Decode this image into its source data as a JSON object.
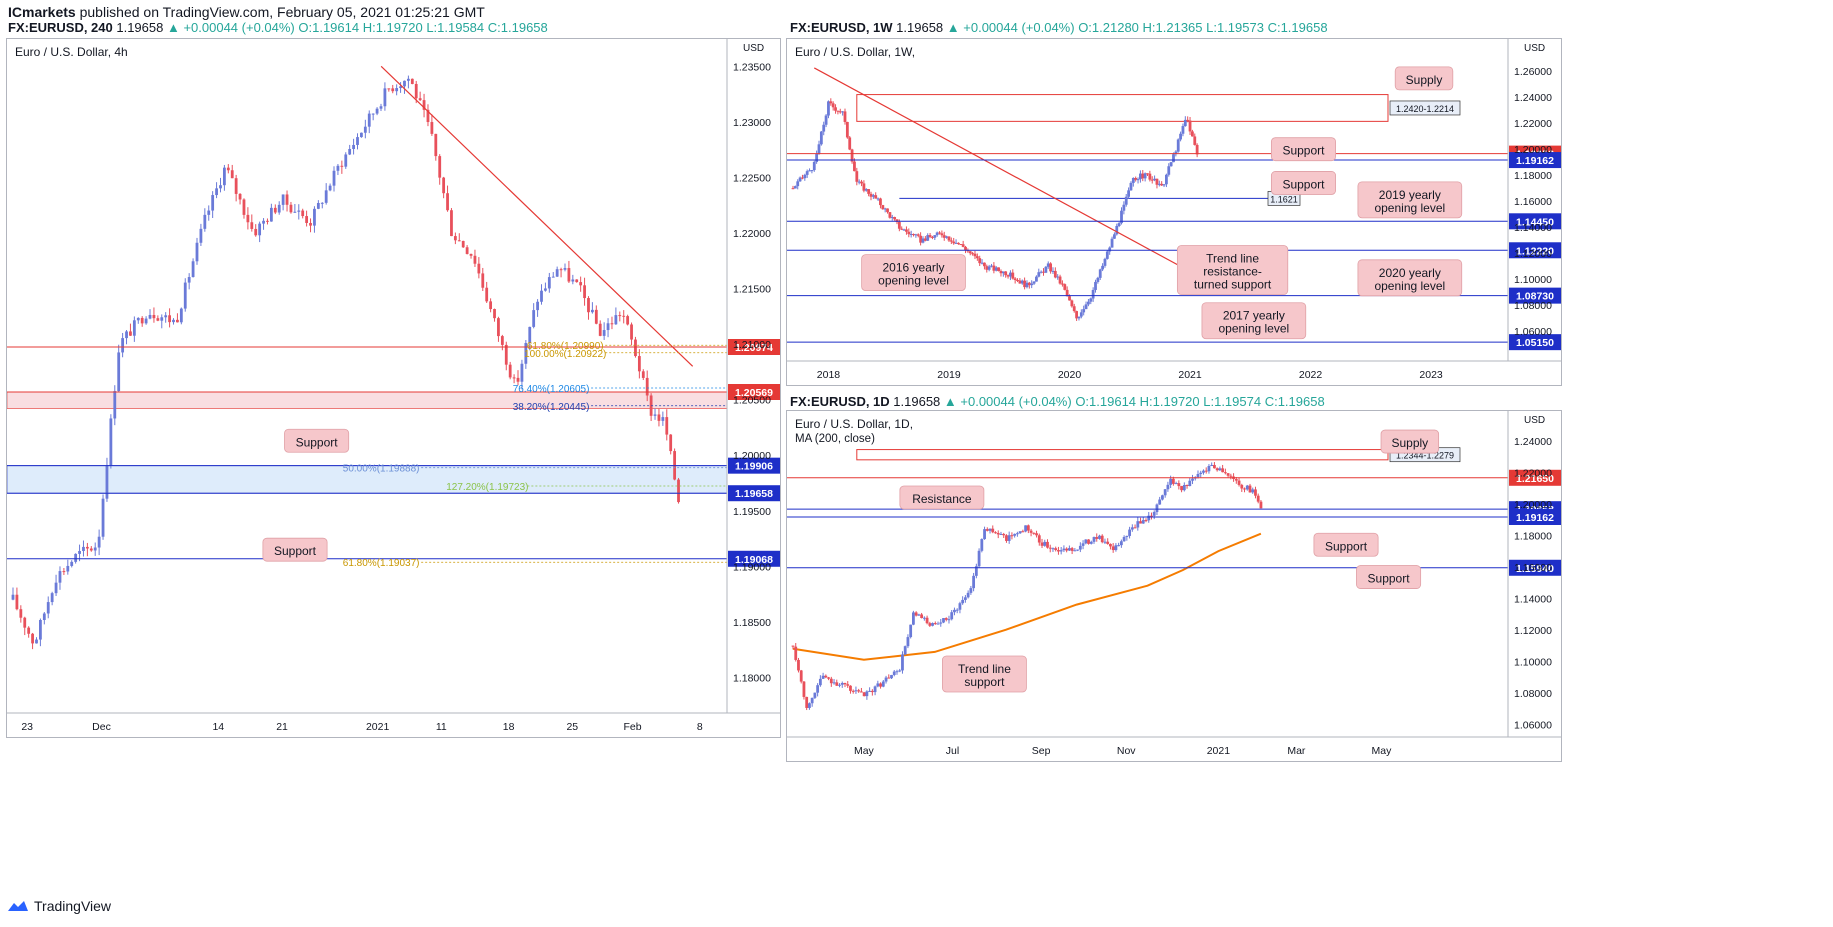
{
  "header": {
    "publisher": "ICmarkets",
    "published_text": "published on TradingView.com, February 05, 2021 01:25:21 GMT"
  },
  "footer": {
    "brand": "TradingView",
    "logo_icon": "tradingview-logo-icon"
  },
  "colors": {
    "up": "#6a7ad8",
    "down": "#e8505b",
    "support_line": "#1e2fc8",
    "resistance": "#e53935",
    "zone_blue": "#d6e8fb",
    "zone_red": "#f8d7da",
    "callout_bg": "#f6c7cb",
    "ma": "#f57c00"
  },
  "chart_data": [
    {
      "id": "h4",
      "type": "candlestick",
      "symbol_line": {
        "ticker": "FX:EURUSD, 240",
        "close": "1.19658",
        "change": "+0.00044 (+0.04%)",
        "o": "1.19614",
        "h": "1.19720",
        "l": "1.19584",
        "c": "1.19658"
      },
      "title": "Euro / U.S. Dollar, 4h",
      "currency": "USD",
      "ylim": [
        1.1768,
        1.2362
      ],
      "y_ticks": [
        "1.23500",
        "1.23000",
        "1.22500",
        "1.22000",
        "1.21500",
        "1.21000",
        "1.20500",
        "1.20000",
        "1.19500",
        "1.19000",
        "1.18500",
        "1.18000"
      ],
      "x_ticks": [
        {
          "label": "23",
          "t": 0.02
        },
        {
          "label": "Dec",
          "t": 0.125
        },
        {
          "label": "14",
          "t": 0.29
        },
        {
          "label": "21",
          "t": 0.38
        },
        {
          "label": "2021",
          "t": 0.515
        },
        {
          "label": "11",
          "t": 0.605
        },
        {
          "label": "18",
          "t": 0.7
        },
        {
          "label": "25",
          "t": 0.79
        },
        {
          "label": "Feb",
          "t": 0.875
        },
        {
          "label": "8",
          "t": 0.97
        }
      ],
      "path": [
        [
          0,
          1.187
        ],
        [
          0.03,
          1.183
        ],
        [
          0.06,
          1.189
        ],
        [
          0.09,
          1.191
        ],
        [
          0.12,
          1.192
        ],
        [
          0.15,
          1.21
        ],
        [
          0.19,
          1.213
        ],
        [
          0.23,
          1.212
        ],
        [
          0.27,
          1.221
        ],
        [
          0.3,
          1.226
        ],
        [
          0.34,
          1.22
        ],
        [
          0.38,
          1.223
        ],
        [
          0.42,
          1.221
        ],
        [
          0.46,
          1.226
        ],
        [
          0.5,
          1.23
        ],
        [
          0.53,
          1.233
        ],
        [
          0.56,
          1.234
        ],
        [
          0.59,
          1.229
        ],
        [
          0.62,
          1.22
        ],
        [
          0.65,
          1.218
        ],
        [
          0.68,
          1.212
        ],
        [
          0.71,
          1.206
        ],
        [
          0.74,
          1.214
        ],
        [
          0.77,
          1.217
        ],
        [
          0.8,
          1.215
        ],
        [
          0.83,
          1.211
        ],
        [
          0.86,
          1.213
        ],
        [
          0.88,
          1.209
        ],
        [
          0.9,
          1.204
        ],
        [
          0.92,
          1.203
        ],
        [
          0.94,
          1.196
        ]
      ],
      "price_levels": [
        {
          "price": 1.20974,
          "label": "1.20974",
          "style": "red"
        },
        {
          "price": 1.20569,
          "label": "1.20569",
          "style": "red"
        },
        {
          "price": 1.19906,
          "label": "1.19906",
          "style": "blue"
        },
        {
          "price": 1.19658,
          "label": "1.19658",
          "style": "blue"
        },
        {
          "price": 1.19068,
          "label": "1.19068",
          "style": "blue"
        }
      ],
      "zones": [
        {
          "from": 1.19906,
          "to": 1.19658,
          "color": "blue"
        },
        {
          "from": 1.20569,
          "to": 1.2042,
          "color": "red"
        }
      ],
      "trendlines": [
        {
          "x0": 0.52,
          "y0": 1.235,
          "x1": 0.96,
          "y1": 1.208
        }
      ],
      "fib_labels": [
        {
          "text": "61.80%(1.20990)",
          "price": 1.2099,
          "x": 0.78,
          "color": "#c99700"
        },
        {
          "text": "100.00%(1.20922)",
          "price": 1.20922,
          "x": 0.78,
          "color": "#c99700"
        },
        {
          "text": "76.40%(1.20605)",
          "price": 1.20605,
          "x": 0.76,
          "color": "#1e88e5"
        },
        {
          "text": "38.20%(1.20445)",
          "price": 1.20445,
          "x": 0.76,
          "color": "#1e3fb0"
        },
        {
          "text": "50.00%(1.19888)",
          "price": 1.19888,
          "x": 0.52,
          "color": "#6b8fd6"
        },
        {
          "text": "127.20%(1.19723)",
          "price": 1.19723,
          "x": 0.67,
          "color": "#8bc34a"
        },
        {
          "text": "61.80%(1.19037)",
          "price": 1.19037,
          "x": 0.52,
          "color": "#c99700"
        }
      ],
      "callouts": [
        {
          "text": "Support",
          "cx": 0.43,
          "price": 1.2013
        },
        {
          "text": "Support",
          "cx": 0.4,
          "price": 1.1915
        }
      ]
    },
    {
      "id": "w1",
      "type": "candlestick",
      "symbol_line": {
        "ticker": "FX:EURUSD, 1W",
        "close": "1.19658",
        "change": "+0.00044 (+0.04%)",
        "o": "1.21280",
        "h": "1.21365",
        "l": "1.19573",
        "c": "1.19658"
      },
      "title": "Euro / U.S. Dollar, 1W,",
      "currency": "USD",
      "ylim": [
        1.037,
        1.274
      ],
      "y_ticks": [
        "1.26000",
        "1.24000",
        "1.22000",
        "1.20000",
        "1.18000",
        "1.16000",
        "1.14000",
        "1.12000",
        "1.10000",
        "1.08000",
        "1.06000"
      ],
      "x_ticks": [
        {
          "label": "2018",
          "t": 0.05
        },
        {
          "label": "2019",
          "t": 0.22
        },
        {
          "label": "2020",
          "t": 0.39
        },
        {
          "label": "2021",
          "t": 0.56
        },
        {
          "label": "2022",
          "t": 0.73
        },
        {
          "label": "2023",
          "t": 0.9
        }
      ],
      "path": [
        [
          0,
          1.17
        ],
        [
          0.03,
          1.188
        ],
        [
          0.05,
          1.235
        ],
        [
          0.07,
          1.228
        ],
        [
          0.09,
          1.175
        ],
        [
          0.12,
          1.16
        ],
        [
          0.15,
          1.14
        ],
        [
          0.18,
          1.13
        ],
        [
          0.21,
          1.135
        ],
        [
          0.24,
          1.125
        ],
        [
          0.27,
          1.11
        ],
        [
          0.3,
          1.105
        ],
        [
          0.33,
          1.095
        ],
        [
          0.36,
          1.11
        ],
        [
          0.38,
          1.095
        ],
        [
          0.4,
          1.07
        ],
        [
          0.42,
          1.087
        ],
        [
          0.44,
          1.115
        ],
        [
          0.46,
          1.145
        ],
        [
          0.48,
          1.178
        ],
        [
          0.5,
          1.18
        ],
        [
          0.52,
          1.17
        ],
        [
          0.54,
          1.2
        ],
        [
          0.555,
          1.225
        ],
        [
          0.57,
          1.196
        ]
      ],
      "price_levels": [
        {
          "price": 1.19658,
          "label": "1.19658",
          "style": "red"
        },
        {
          "price": 1.19162,
          "label": "1.19162",
          "style": "blue"
        },
        {
          "price": 1.1445,
          "label": "1.14450",
          "style": "blue"
        },
        {
          "price": 1.1222,
          "label": "1.12220",
          "style": "blue"
        },
        {
          "price": 1.0873,
          "label": "1.08730",
          "style": "blue"
        },
        {
          "price": 1.0515,
          "label": "1.05150",
          "style": "blue"
        }
      ],
      "supply_zone": {
        "from": 1.242,
        "to": 1.2214,
        "label": "1.2420-1.2214"
      },
      "support_tag": {
        "price": 1.1621,
        "label": "1.1621"
      },
      "trendlines": [
        {
          "x0": 0.03,
          "y0": 1.2625,
          "x1": 0.59,
          "y1": 1.097
        }
      ],
      "callouts": [
        {
          "text": "Supply",
          "x": 0.89,
          "price": 1.2545
        },
        {
          "text": "Support",
          "x": 0.72,
          "price": 1.2
        },
        {
          "text": "Support",
          "x": 0.72,
          "price": 1.174
        },
        {
          "text": "2019 yearly|opening level",
          "x": 0.87,
          "price": 1.161
        },
        {
          "text": "2016 yearly|opening level",
          "x": 0.17,
          "price": 1.105
        },
        {
          "text": "Trend line|resistance-|turned support",
          "x": 0.62,
          "price": 1.107
        },
        {
          "text": "2020 yearly|opening level",
          "x": 0.87,
          "price": 1.101
        },
        {
          "text": "2017 yearly|opening level",
          "x": 0.65,
          "price": 1.068
        }
      ]
    },
    {
      "id": "d1",
      "type": "candlestick",
      "symbol_line": {
        "ticker": "FX:EURUSD, 1D",
        "close": "1.19658",
        "change": "+0.00044 (+0.04%)",
        "o": "1.19614",
        "h": "1.19720",
        "l": "1.19574",
        "c": "1.19658"
      },
      "title": "Euro / U.S. Dollar, 1D,",
      "subtitle": "MA (200, close)",
      "currency": "USD",
      "ylim": [
        1.052,
        1.25
      ],
      "y_ticks": [
        "1.24000",
        "1.22000",
        "1.20000",
        "1.18000",
        "1.16000",
        "1.14000",
        "1.12000",
        "1.10000",
        "1.08000",
        "1.06000"
      ],
      "x_ticks": [
        {
          "label": "May",
          "t": 0.1
        },
        {
          "label": "Jul",
          "t": 0.225
        },
        {
          "label": "Sep",
          "t": 0.35
        },
        {
          "label": "Nov",
          "t": 0.47
        },
        {
          "label": "2021",
          "t": 0.6
        },
        {
          "label": "Mar",
          "t": 0.71
        },
        {
          "label": "May",
          "t": 0.83
        }
      ],
      "path": [
        [
          0,
          1.11
        ],
        [
          0.02,
          1.07
        ],
        [
          0.04,
          1.09
        ],
        [
          0.07,
          1.085
        ],
        [
          0.1,
          1.078
        ],
        [
          0.13,
          1.088
        ],
        [
          0.15,
          1.095
        ],
        [
          0.17,
          1.13
        ],
        [
          0.2,
          1.122
        ],
        [
          0.22,
          1.128
        ],
        [
          0.25,
          1.145
        ],
        [
          0.27,
          1.185
        ],
        [
          0.3,
          1.178
        ],
        [
          0.33,
          1.185
        ],
        [
          0.35,
          1.175
        ],
        [
          0.38,
          1.17
        ],
        [
          0.4,
          1.172
        ],
        [
          0.43,
          1.18
        ],
        [
          0.45,
          1.17
        ],
        [
          0.48,
          1.185
        ],
        [
          0.51,
          1.195
        ],
        [
          0.53,
          1.215
        ],
        [
          0.55,
          1.21
        ],
        [
          0.57,
          1.218
        ],
        [
          0.59,
          1.225
        ],
        [
          0.61,
          1.22
        ],
        [
          0.63,
          1.212
        ],
        [
          0.65,
          1.208
        ],
        [
          0.66,
          1.196
        ]
      ],
      "ma200": [
        [
          0,
          1.108
        ],
        [
          0.1,
          1.101
        ],
        [
          0.2,
          1.106
        ],
        [
          0.3,
          1.12
        ],
        [
          0.4,
          1.136
        ],
        [
          0.5,
          1.148
        ],
        [
          0.55,
          1.158
        ],
        [
          0.6,
          1.17
        ],
        [
          0.66,
          1.181
        ]
      ],
      "price_levels": [
        {
          "price": 1.2165,
          "label": "1.21650",
          "style": "red"
        },
        {
          "price": 1.19658,
          "label": "1.19658",
          "style": "blue"
        },
        {
          "price": 1.19162,
          "label": "1.19162",
          "style": "blue"
        },
        {
          "price": 1.1594,
          "label": "1.15940",
          "style": "blue"
        }
      ],
      "supply_zone": {
        "from": 1.2344,
        "to": 1.2279,
        "label": "1.2344-1.2279"
      },
      "callouts": [
        {
          "text": "Supply",
          "x": 0.87,
          "price": 1.2395
        },
        {
          "text": "Resistance",
          "x": 0.21,
          "price": 1.204
        },
        {
          "text": "Support",
          "x": 0.78,
          "price": 1.174
        },
        {
          "text": "Support",
          "x": 0.84,
          "price": 1.1535
        },
        {
          "text": "Trend line|support",
          "x": 0.27,
          "price": 1.092
        }
      ]
    }
  ]
}
